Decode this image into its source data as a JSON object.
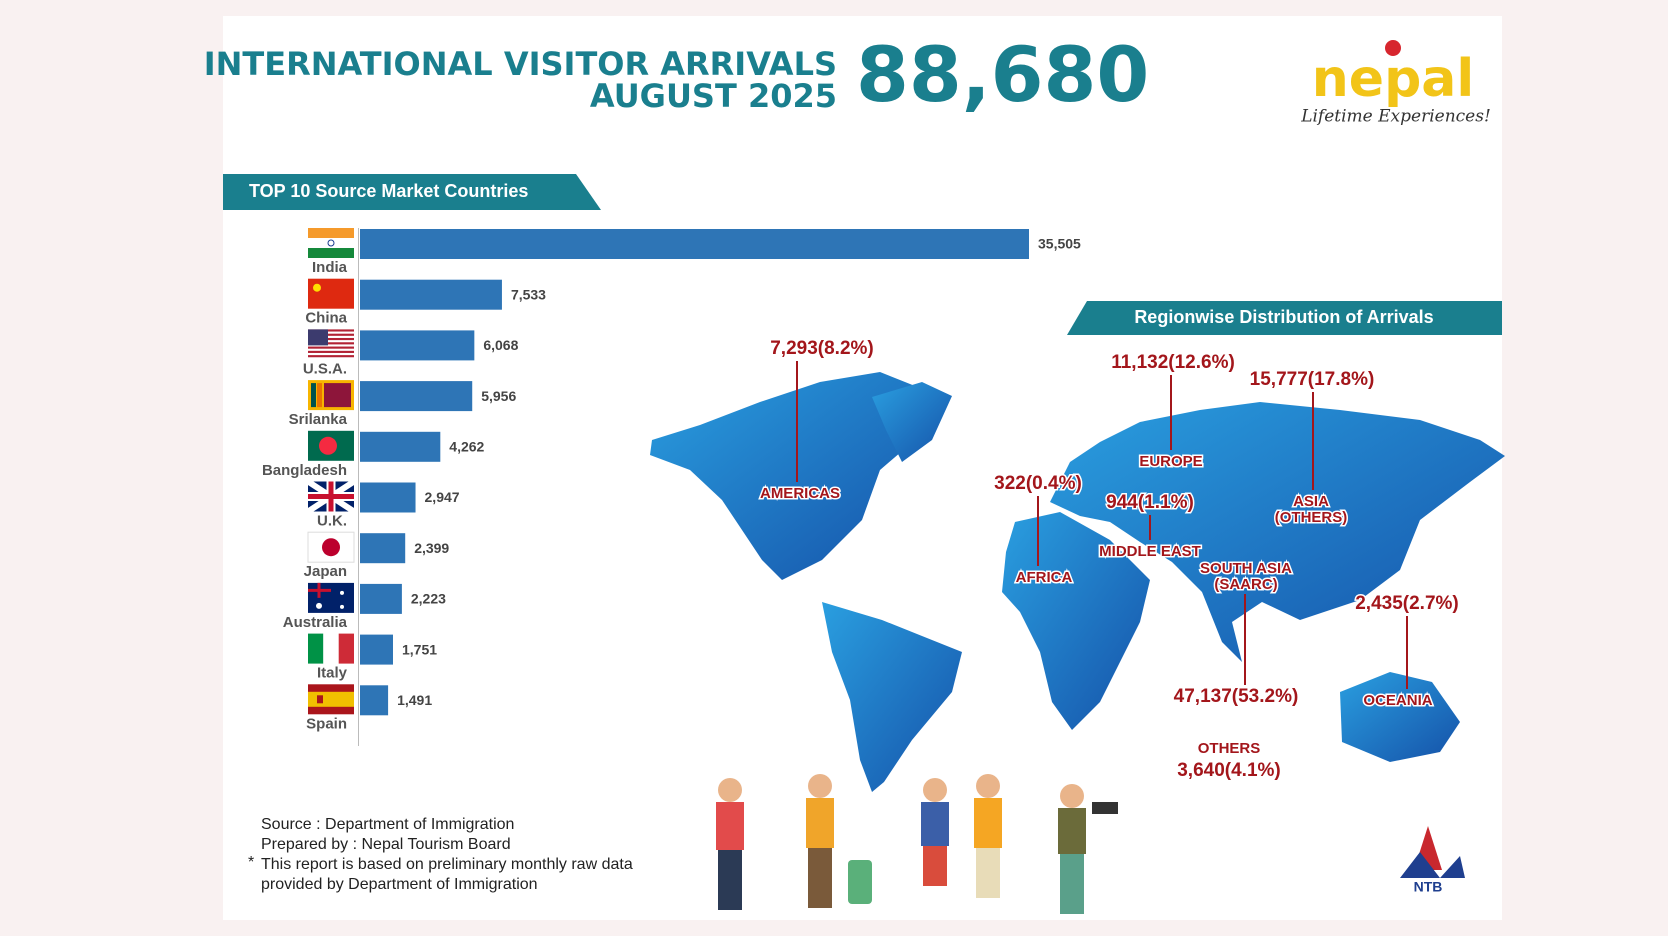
{
  "header": {
    "title_line1": "INTERNATIONAL VISITOR ARRIVALS",
    "title_line2": "AUGUST 2025",
    "total": "88,680"
  },
  "logo": {
    "name": "nepal",
    "tagline": "Lifetime Experiences!",
    "agency": "NTB"
  },
  "chart_data": {
    "type": "bar",
    "orientation": "horizontal",
    "title": "TOP 10 Source Market Countries",
    "categories": [
      "India",
      "China",
      "U.S.A.",
      "Srilanka",
      "Bangladesh",
      "U.K.",
      "Japan",
      "Australia",
      "Italy",
      "Spain"
    ],
    "values": [
      35505,
      7533,
      6068,
      5956,
      4262,
      2947,
      2399,
      2223,
      1751,
      1491
    ],
    "value_labels": [
      "35,505",
      "7,533",
      "6,068",
      "5,956",
      "4,262",
      "2,947",
      "2,399",
      "2,223",
      "1,751",
      "1,491"
    ],
    "color": "#2e75b6"
  },
  "regions": {
    "title": "Regionwise Distribution of Arrivals",
    "items": [
      {
        "name": [
          "AMERICAS"
        ],
        "label": "7,293(8.2%)"
      },
      {
        "name": [
          "EUROPE"
        ],
        "label": "11,132(12.6%)"
      },
      {
        "name": [
          "ASIA",
          "(OTHERS)"
        ],
        "label": "15,777(17.8%)"
      },
      {
        "name": [
          "AFRICA"
        ],
        "label": "322(0.4%)"
      },
      {
        "name": [
          "MIDDLE EAST"
        ],
        "label": "944(1.1%)"
      },
      {
        "name": [
          "SOUTH ASIA",
          "(SAARC)"
        ],
        "label": "47,137(53.2%)"
      },
      {
        "name": [
          "OCEANIA"
        ],
        "label": "2,435(2.7%)"
      },
      {
        "name": [
          "OTHERS"
        ],
        "label": "3,640(4.1%)"
      }
    ]
  },
  "footer": {
    "source": "Source : Department of Immigration",
    "prepared": "Prepared by : Nepal Tourism Board",
    "note_mark": "*",
    "note": [
      "This report is based on preliminary monthly raw data",
      "provided by Department of Immigration"
    ]
  }
}
